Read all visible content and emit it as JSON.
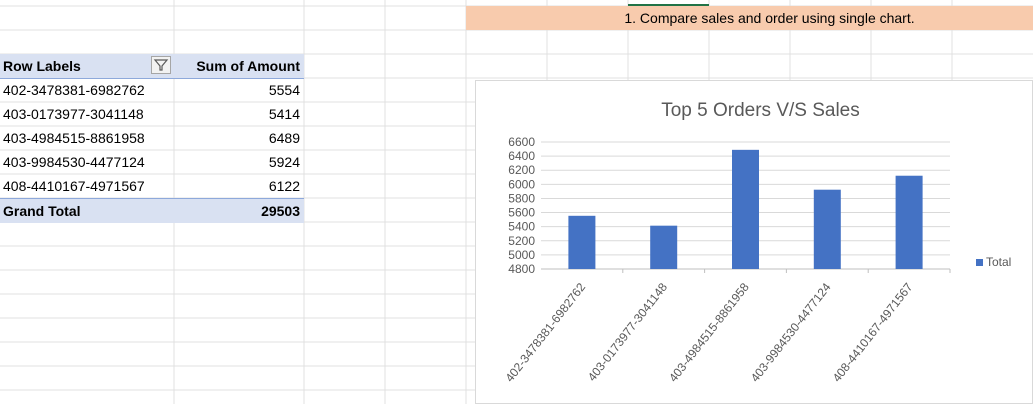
{
  "note": {
    "text": "1. Compare sales and order using single chart."
  },
  "pivot": {
    "header_label": "Row Labels",
    "header_value": "Sum of Amount",
    "rows": [
      {
        "label": "402-3478381-6982762",
        "value": "5554"
      },
      {
        "label": "403-0173977-3041148",
        "value": "5414"
      },
      {
        "label": "403-4984515-8861958",
        "value": "6489"
      },
      {
        "label": "403-9984530-4477124",
        "value": "5924"
      },
      {
        "label": "408-4410167-4971567",
        "value": "6122"
      }
    ],
    "total_label": "Grand Total",
    "total_value": "29503"
  },
  "colors": {
    "bar": "#4472c4",
    "header_fill": "#d9e1f2",
    "note_fill": "#f8cbad"
  },
  "chart_data": {
    "type": "bar",
    "title": "Top 5 Orders V/S Sales",
    "categories": [
      "402-3478381-6982762",
      "403-0173977-3041148",
      "403-4984515-8861958",
      "403-9984530-4477124",
      "408-4410167-4971567"
    ],
    "series": [
      {
        "name": "Total",
        "values": [
          5554,
          5414,
          6489,
          5924,
          6122
        ]
      }
    ],
    "ylim": [
      4800,
      6600
    ],
    "yticks": [
      4800,
      5000,
      5200,
      5400,
      5600,
      5800,
      6000,
      6200,
      6400,
      6600
    ],
    "grid": true,
    "legend": "right"
  }
}
